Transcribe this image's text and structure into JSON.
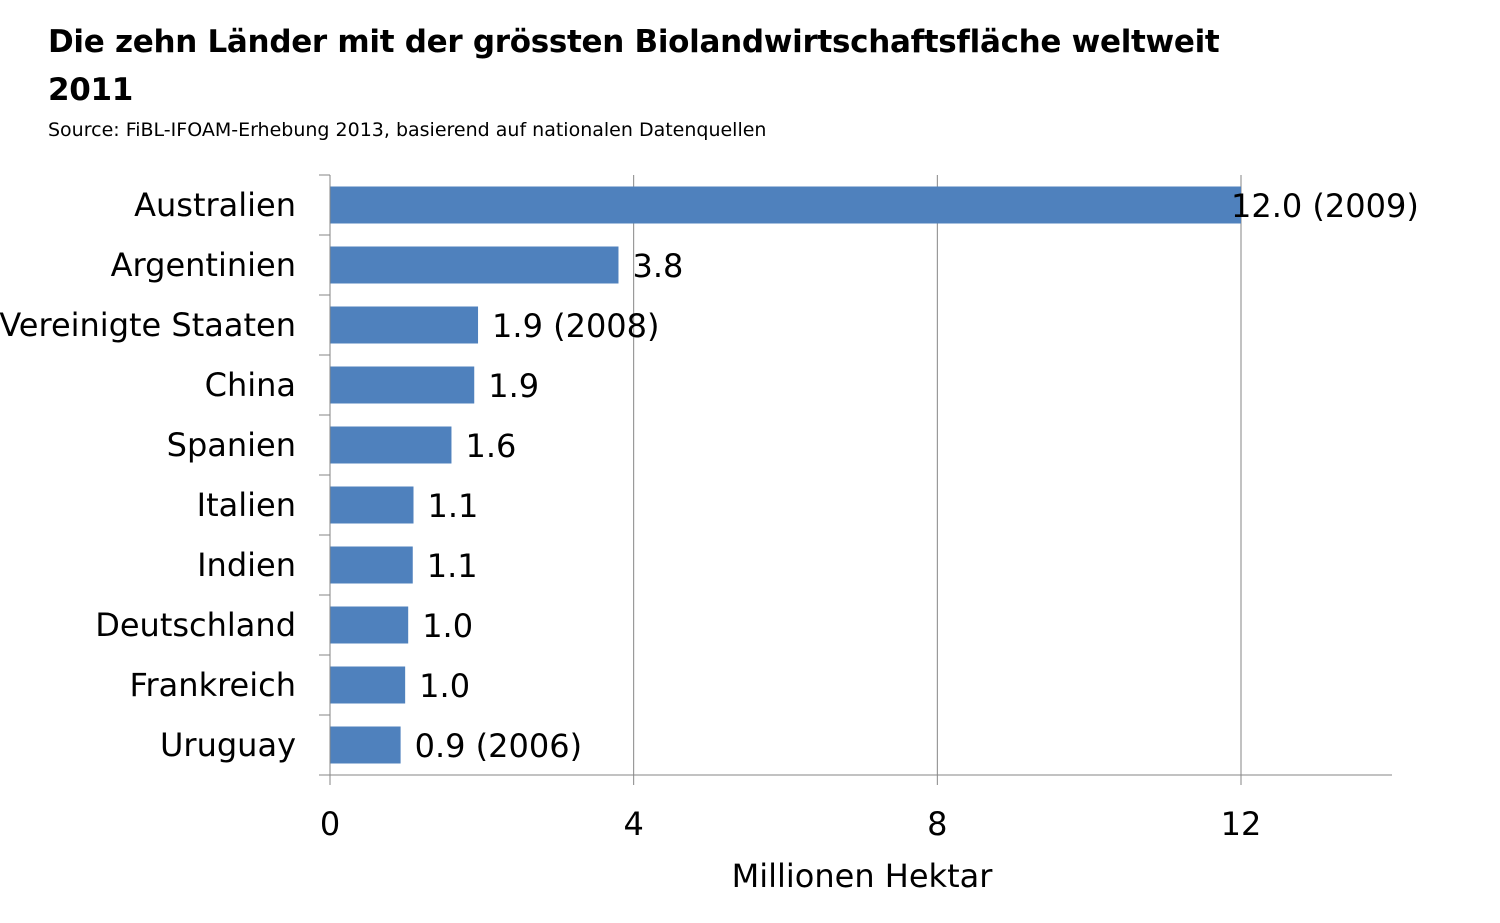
{
  "title": "Die zehn Länder mit der grössten Biolandwirtschaftsfläche weltweit 2011",
  "subtitle": "Source: FiBL-IFOAM-Erhebung 2013, basierend auf nationalen Datenquellen",
  "colors": {
    "bar": "#4f81bd",
    "grid": "#868686",
    "axis": "#868686",
    "text": "#000000"
  },
  "chart_data": {
    "type": "bar",
    "orientation": "horizontal",
    "title": "Die zehn Länder mit der grössten Biolandwirtschaftsfläche weltweit 2011",
    "subtitle": "Source: FiBL-IFOAM-Erhebung 2013, basierend auf nationalen Datenquellen",
    "xlabel": "Millionen Hektar",
    "ylabel": "",
    "categories": [
      "Australien",
      "Argentinien",
      "Vereinigte Staaten",
      "China",
      "Spanien",
      "Italien",
      "Indien",
      "Deutschland",
      "Frankreich",
      "Uruguay"
    ],
    "values": [
      12.0,
      3.8,
      1.95,
      1.9,
      1.6,
      1.1,
      1.09,
      1.03,
      0.99,
      0.93
    ],
    "data_labels": [
      "12.0 (2009)",
      "3.8",
      "1.9 (2008)",
      "1.9",
      "1.6",
      "1.1",
      "1.1",
      "1.0",
      "1.0",
      "0.9 (2006)"
    ],
    "xlim": [
      0,
      14
    ],
    "xticks": [
      0,
      4,
      8,
      12
    ],
    "xtick_labels": [
      "0",
      "4",
      "8",
      "12"
    ],
    "grid": true,
    "legend": "none"
  }
}
